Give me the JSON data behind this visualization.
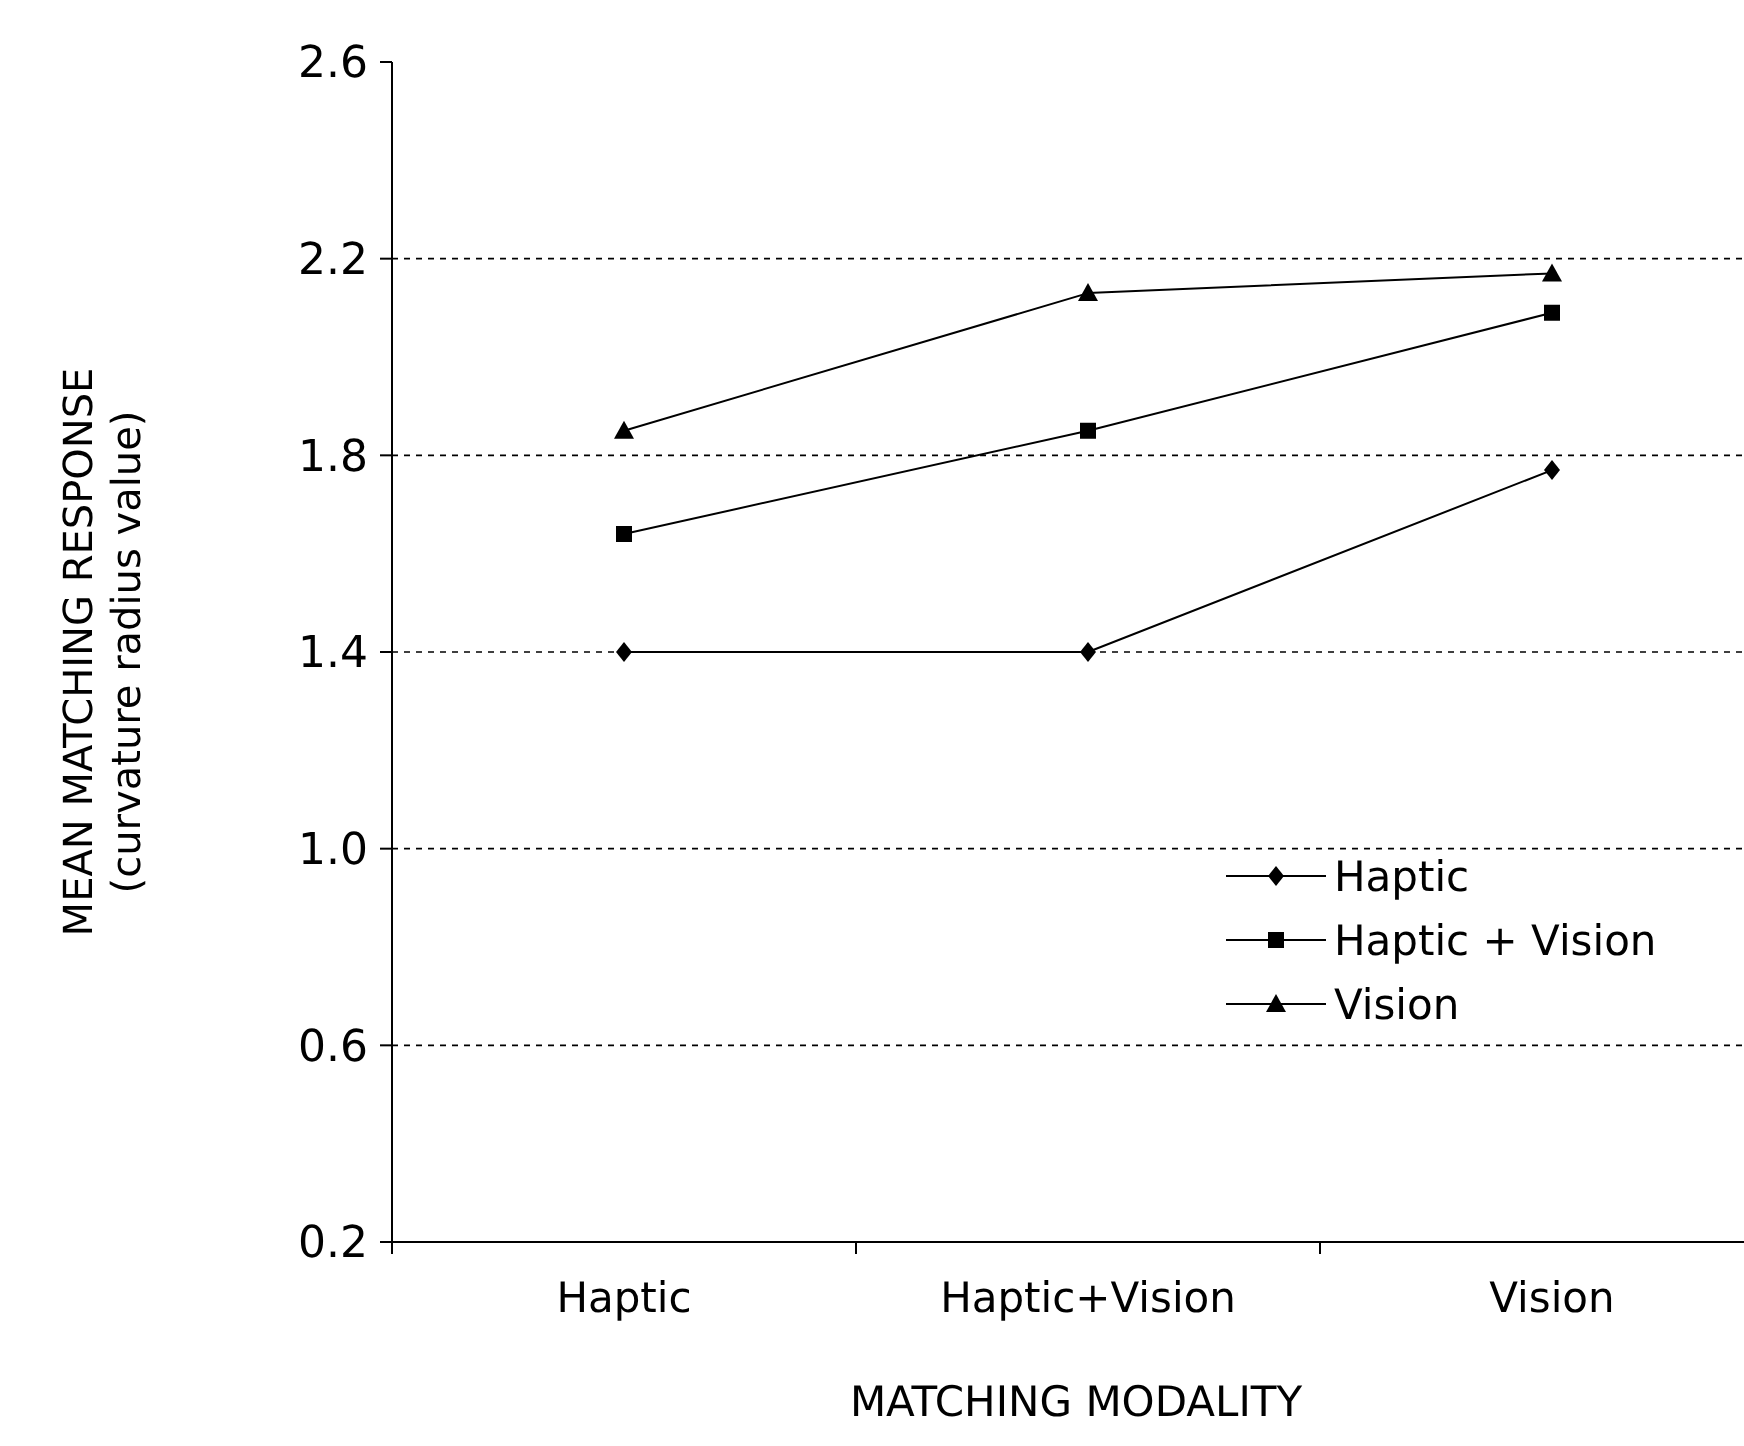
{
  "chart_data": {
    "type": "line",
    "xlabel": "MATCHING MODALITY",
    "ylabel": "MEAN MATCHING RESPONSE\n(curvature radius value)",
    "categories": [
      "Haptic",
      "Haptic+Vision",
      "Vision"
    ],
    "series": [
      {
        "name": "Haptic",
        "color": "#000000",
        "marker": "diamond",
        "values": [
          1.4,
          1.4,
          1.77
        ]
      },
      {
        "name": "Haptic + Vision",
        "color": "#000000",
        "marker": "square",
        "values": [
          1.64,
          1.85,
          2.09
        ]
      },
      {
        "name": "Vision",
        "color": "#000000",
        "marker": "triangle",
        "values": [
          1.85,
          2.13,
          2.17
        ]
      }
    ],
    "ylim": [
      0.2,
      2.6
    ],
    "yticks": [
      {
        "value": 0.2,
        "label": "0.2"
      },
      {
        "value": 0.6,
        "label": "0.6"
      },
      {
        "value": 1.0,
        "label": "1.0"
      },
      {
        "value": 1.4,
        "label": "1.4"
      },
      {
        "value": 1.8,
        "label": "1.8"
      },
      {
        "value": 2.2,
        "label": "2.2"
      },
      {
        "value": 2.6,
        "label": "2.6"
      }
    ],
    "grid": "y",
    "legend": "right",
    "line_style": "solid"
  }
}
